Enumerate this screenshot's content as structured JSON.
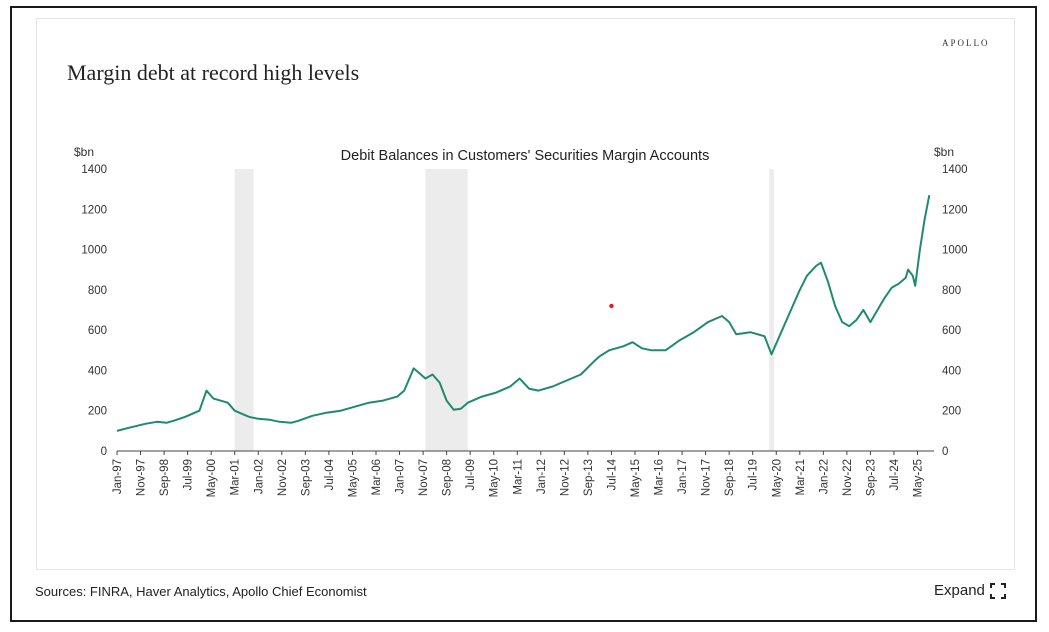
{
  "page": {
    "brand": "APOLLO",
    "title": "Margin debt at record high levels",
    "sources": "Sources: FINRA, Haver Analytics, Apollo Chief Economist",
    "expand_label": "Expand",
    "expand_icon": "expand-icon"
  },
  "chart_data": {
    "type": "line",
    "title": "Debit Balances in Customers' Securities Margin Accounts",
    "left_unit": "$bn",
    "right_unit": "$bn",
    "ylim": [
      0,
      1400
    ],
    "yticks": [
      0,
      200,
      400,
      600,
      800,
      1000,
      1200,
      1400
    ],
    "xlim": [
      "1997-01",
      "2025-12"
    ],
    "xticks": [
      "Jan-97",
      "Nov-97",
      "Sep-98",
      "Jul-99",
      "May-00",
      "Mar-01",
      "Jan-02",
      "Nov-02",
      "Sep-03",
      "Jul-04",
      "May-05",
      "Mar-06",
      "Jan-07",
      "Nov-07",
      "Sep-08",
      "Jul-09",
      "May-10",
      "Mar-11",
      "Jan-12",
      "Nov-12",
      "Sep-13",
      "Jul-14",
      "May-15",
      "Mar-16",
      "Jan-17",
      "Nov-17",
      "Sep-18",
      "Jul-19",
      "May-20",
      "Mar-21",
      "Jan-22",
      "Nov-22",
      "Sep-23",
      "Jul-24",
      "May-25"
    ],
    "recessions": [
      [
        "2001-03",
        "2001-11"
      ],
      [
        "2007-12",
        "2009-06"
      ],
      [
        "2020-02",
        "2020-04"
      ]
    ],
    "line_color": "#1f8a6e",
    "recession_color": "#ececec",
    "marker": {
      "x": "2014-07",
      "y": 720,
      "color": "#e02020"
    },
    "series": [
      {
        "x": [
          "1997-01",
          "1997-06",
          "1998-01",
          "1998-06",
          "1998-10",
          "1999-01",
          "1999-06",
          "1999-12",
          "2000-03",
          "2000-06",
          "2000-12",
          "2001-03",
          "2001-09",
          "2002-01",
          "2002-06",
          "2002-10",
          "2003-03",
          "2003-06",
          "2003-12",
          "2004-06",
          "2004-12",
          "2005-06",
          "2005-12",
          "2006-06",
          "2006-12",
          "2007-03",
          "2007-07",
          "2007-09",
          "2007-12",
          "2008-03",
          "2008-06",
          "2008-09",
          "2008-12",
          "2009-03",
          "2009-06",
          "2009-12",
          "2010-06",
          "2010-12",
          "2011-04",
          "2011-08",
          "2011-12",
          "2012-06",
          "2012-12",
          "2013-06",
          "2013-12",
          "2014-02",
          "2014-06",
          "2014-12",
          "2015-04",
          "2015-08",
          "2015-12",
          "2016-06",
          "2016-12",
          "2017-06",
          "2017-12",
          "2018-06",
          "2018-09",
          "2018-12",
          "2019-06",
          "2019-12",
          "2020-03",
          "2020-06",
          "2020-12",
          "2021-03",
          "2021-06",
          "2021-10",
          "2021-12",
          "2022-03",
          "2022-06",
          "2022-09",
          "2022-12",
          "2023-03",
          "2023-06",
          "2023-09",
          "2023-12",
          "2024-03",
          "2024-06",
          "2024-09",
          "2024-12",
          "2025-01",
          "2025-03",
          "2025-04",
          "2025-06",
          "2025-08",
          "2025-10"
        ],
        "values": [
          100,
          115,
          135,
          145,
          140,
          150,
          170,
          200,
          300,
          260,
          240,
          200,
          170,
          160,
          155,
          145,
          140,
          150,
          175,
          190,
          200,
          220,
          240,
          250,
          270,
          300,
          410,
          390,
          360,
          380,
          340,
          250,
          205,
          210,
          240,
          270,
          290,
          320,
          360,
          310,
          300,
          320,
          350,
          380,
          450,
          470,
          500,
          520,
          540,
          510,
          500,
          500,
          550,
          590,
          640,
          670,
          640,
          580,
          590,
          570,
          480,
          560,
          720,
          800,
          870,
          920,
          935,
          840,
          720,
          640,
          620,
          650,
          700,
          640,
          700,
          760,
          810,
          830,
          860,
          900,
          870,
          820,
          1000,
          1150,
          1270
        ]
      }
    ]
  }
}
